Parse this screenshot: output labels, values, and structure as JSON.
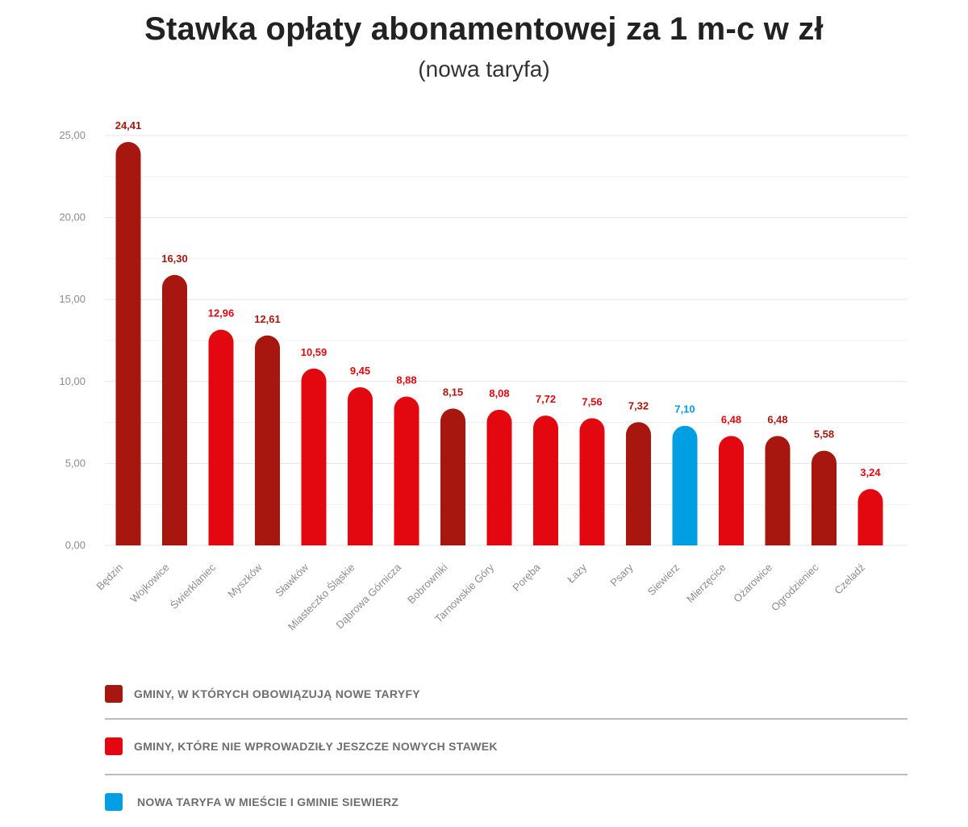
{
  "title": "Stawka opłaty abonamentowej za 1 m-c w zł",
  "subtitle": "(nowa taryfa)",
  "colors": {
    "new_tariff": "#a8170f",
    "not_yet": "#e3070f",
    "siewierz": "#009fe3",
    "grid": "#e6e6e6",
    "axis_text": "#8c8c8c"
  },
  "chart_data": {
    "type": "bar",
    "title": "Stawka opłaty abonamentowej za 1 m-c w zł",
    "subtitle": "(nowa taryfa)",
    "ylim": [
      0,
      25
    ],
    "yticks": [
      "0,00",
      "5,00",
      "10,00",
      "15,00",
      "20,00",
      "25,00"
    ],
    "ytick_values": [
      0,
      5,
      10,
      15,
      20,
      25
    ],
    "grid": true,
    "legend_position": "bottom",
    "categories": [
      "Będzin",
      "Wojkowice",
      "Świerklaniec",
      "Myszków",
      "Sławków",
      "Miasteczko Śląskie",
      "Dąbrowa Górnicza",
      "Bobrowniki",
      "Tarnowskie Góry",
      "Poręba",
      "Łazy",
      "Psary",
      "Siewierz",
      "Mierzęcice",
      "Ożarowice",
      "Ogrodzieniec",
      "Czeladź"
    ],
    "values": [
      24.41,
      16.3,
      12.96,
      12.61,
      10.59,
      9.45,
      8.88,
      8.15,
      8.08,
      7.72,
      7.56,
      7.32,
      7.1,
      6.48,
      6.48,
      5.58,
      3.24
    ],
    "value_labels": [
      "24,41",
      "16,30",
      "12,96",
      "12,61",
      "10,59",
      "9,45",
      "8,88",
      "8,15",
      "8,08",
      "7,72",
      "7,56",
      "7,32",
      "7,10",
      "6,48",
      "6,48",
      "5,58",
      "3,24"
    ],
    "groups": [
      "new_tariff",
      "new_tariff",
      "not_yet",
      "new_tariff",
      "not_yet",
      "not_yet",
      "not_yet",
      "new_tariff",
      "not_yet",
      "not_yet",
      "not_yet",
      "new_tariff",
      "siewierz",
      "not_yet",
      "new_tariff",
      "new_tariff",
      "not_yet"
    ]
  },
  "legend": [
    {
      "key": "new_tariff",
      "label": "GMINY, W KTÓRYCH OBOWIĄZUJĄ NOWE TARYFY"
    },
    {
      "key": "not_yet",
      "label": "GMINY, KTÓRE NIE WPROWADZIŁY JESZCZE NOWYCH STAWEK"
    },
    {
      "key": "siewierz",
      "label": "NOWA TARYFA W MIEŚCIE I GMINIE SIEWIERZ"
    }
  ]
}
